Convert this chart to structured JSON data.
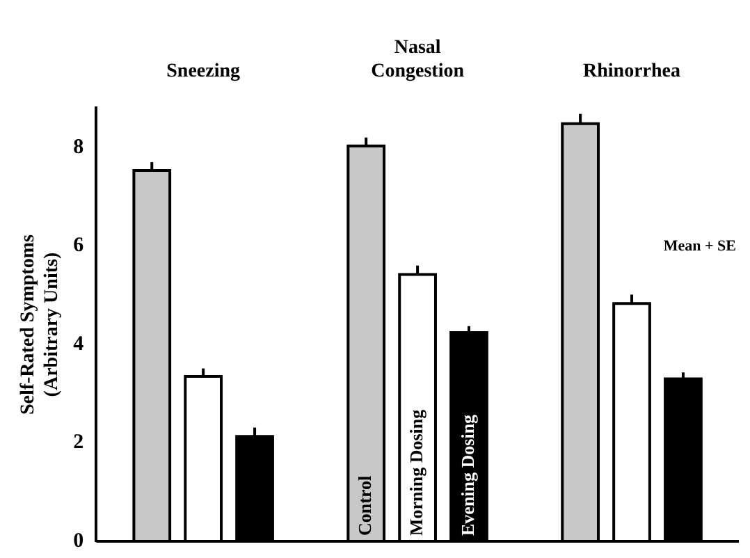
{
  "chart_data": {
    "type": "bar",
    "categories": [
      "Sneezing",
      "Nasal Congestion",
      "Rhinorrhea"
    ],
    "ylabel": "Self-Rated Symptoms\n(Arbitrary Units)",
    "series": [
      {
        "name": "Control",
        "color": "#c8c8c8",
        "values": [
          7.53,
          8.03,
          8.48
        ],
        "errors": [
          [
            7.53,
            7.7
          ],
          [
            8.03,
            8.2
          ],
          [
            8.48,
            8.68
          ]
        ]
      },
      {
        "name": "Morning Dosing",
        "color": "#ffffff",
        "values": [
          3.35,
          5.42,
          4.83
        ],
        "errors": [
          [
            3.35,
            3.51
          ],
          [
            5.42,
            5.6
          ],
          [
            4.83,
            5.01
          ]
        ]
      },
      {
        "name": "Evening Dosing",
        "color": "#000000",
        "values": [
          2.13,
          4.24,
          3.3
        ],
        "errors": [
          [
            2.13,
            2.31
          ],
          [
            4.24,
            4.37
          ],
          [
            3.3,
            3.43
          ]
        ]
      }
    ],
    "ylim": [
      0,
      8.8
    ],
    "yticks": [
      0,
      2,
      4,
      6,
      8
    ],
    "grid": false,
    "legend": false,
    "annotations": [
      "Mean + SE"
    ]
  }
}
